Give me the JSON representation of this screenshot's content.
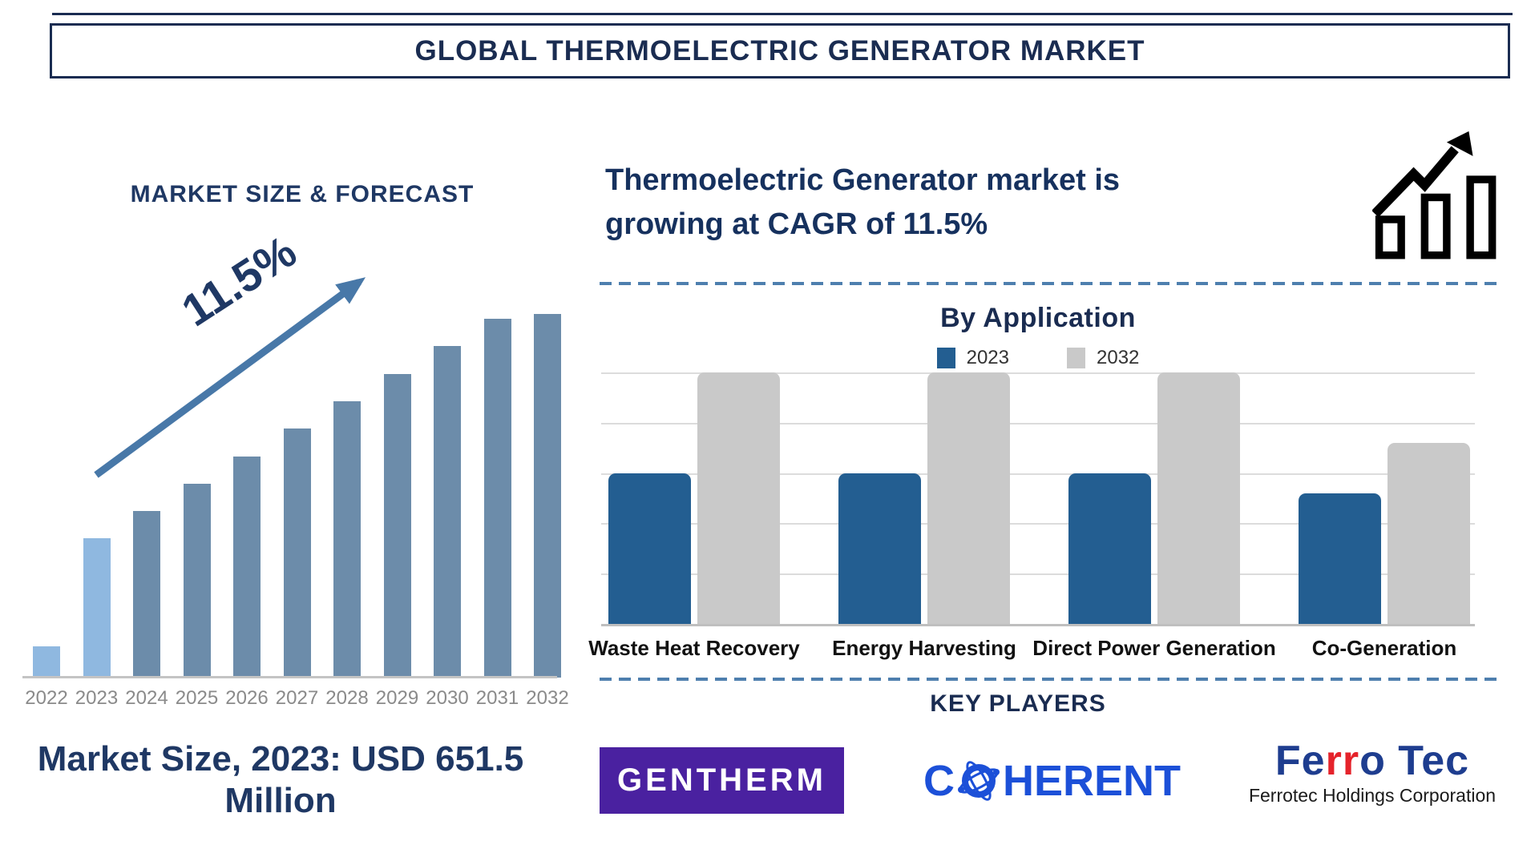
{
  "title": "GLOBAL THERMOELECTRIC GENERATOR MARKET",
  "left_panel": {
    "heading": "MARKET SIZE & FORECAST",
    "growth_label": "11.5%",
    "caption": "Market Size, 2023: USD 651.5 Million"
  },
  "right_panel": {
    "headline_line1": "Thermoelectric Generator market is",
    "headline_line2": "growing at CAGR of 11.5%",
    "key_players_heading": "KEY PLAYERS",
    "logos": {
      "gentherm": {
        "text": "GENTHERM",
        "bg": "#4a21a0"
      },
      "coherent": {
        "prefix": "C",
        "suffix": "HERENT",
        "color": "#1c50d8"
      },
      "ferrotec": {
        "part_blue1": "Fe",
        "part_red": "rr",
        "part_blue2": "o Tec",
        "subtitle": "Ferrotec Holdings Corporation",
        "blue": "#1e3d8f",
        "red": "#e5232b"
      }
    }
  },
  "chart_data": [
    {
      "id": "market-size-forecast",
      "type": "bar",
      "title": "MARKET SIZE & FORECAST",
      "categories": [
        "2022",
        "2023",
        "2024",
        "2025",
        "2026",
        "2027",
        "2028",
        "2029",
        "2030",
        "2031",
        "2032"
      ],
      "values_pct_of_max": [
        8.6,
        38.3,
        45.8,
        53.3,
        60.8,
        68.5,
        76.0,
        83.5,
        91.2,
        98.7,
        100
      ],
      "known_point": {
        "year": "2023",
        "value": "USD 651.5 Million"
      },
      "annotation": "11.5%",
      "trend_arrow": true,
      "grid": false,
      "xlabel": "",
      "ylabel": "",
      "bar_color": "#6c8caa",
      "highlight_color": "#8fb8e0",
      "highlight_years": [
        "2022",
        "2023"
      ],
      "axis_color": "#c4c4c4",
      "tick_color": "#8a8a8a"
    },
    {
      "id": "by-application",
      "type": "grouped-bar",
      "title": "By Application",
      "categories": [
        "Waste Heat Recovery",
        "Energy Harvesting",
        "Direct Power Generation",
        "Co-Generation"
      ],
      "series": [
        {
          "name": "2023",
          "color": "#235e91",
          "values_pct_of_axis": [
            60,
            60,
            60,
            52
          ]
        },
        {
          "name": "2032",
          "color": "#c9c9c9",
          "values_pct_of_axis": [
            100,
            100,
            100,
            72
          ]
        }
      ],
      "legend_position": "top-center",
      "grid": true,
      "grid_intervals": 5,
      "ylim": [
        0,
        100
      ],
      "xlabel": "",
      "ylabel": ""
    }
  ]
}
